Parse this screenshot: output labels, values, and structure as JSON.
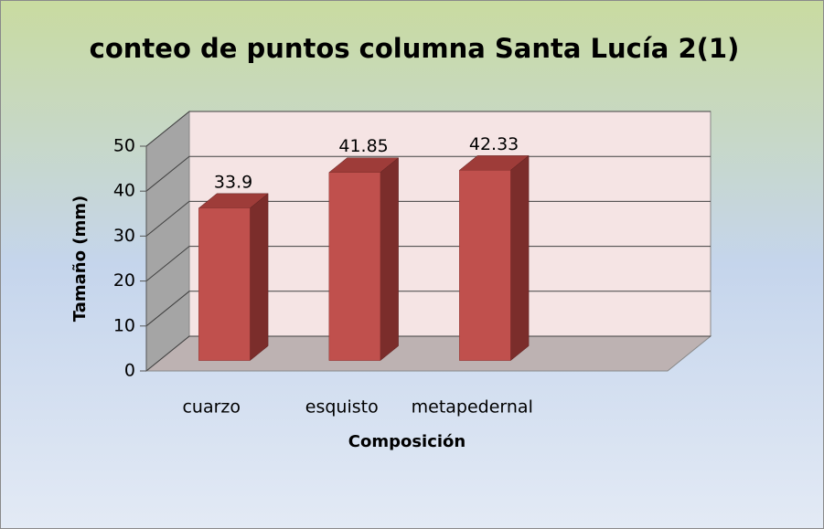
{
  "chart_data": {
    "type": "bar",
    "title": "conteo de puntos columna Santa Lucía 2(1)",
    "categories": [
      "cuarzo",
      "esquisto",
      "metapedernal",
      null
    ],
    "values": [
      33.9,
      41.85,
      42.33,
      null
    ],
    "color": "#c0504d",
    "x_label": "Composición",
    "y_label": "Tamaño (mm)",
    "ylim": [
      0,
      50
    ],
    "yticks": [
      0,
      10,
      20,
      30,
      40,
      50
    ],
    "grid": true
  }
}
